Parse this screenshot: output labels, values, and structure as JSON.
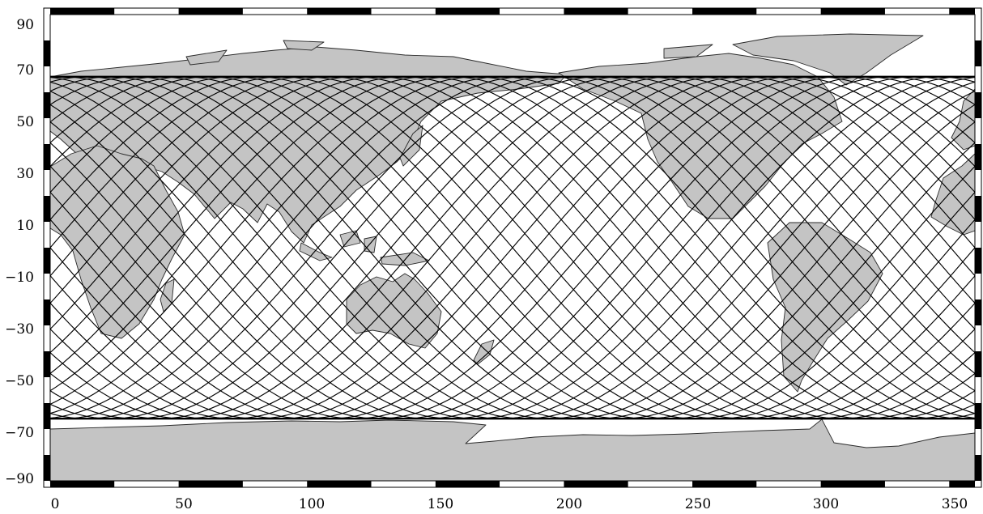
{
  "map": {
    "projection": "equirectangular",
    "frame": "checkered",
    "lon_range": [
      0,
      360
    ],
    "lat_range": [
      -90,
      90
    ],
    "x_ticks": [
      0,
      50,
      100,
      150,
      200,
      250,
      300,
      350
    ],
    "y_ticks": [
      90,
      70,
      50,
      30,
      10,
      -10,
      -30,
      -50,
      -70,
      -90
    ],
    "x_tick_labels": [
      "0",
      "50",
      "100",
      "150",
      "200",
      "250",
      "300",
      "350"
    ],
    "y_tick_labels": [
      "90",
      "70",
      "50",
      "30",
      "10",
      "−10",
      "−30",
      "−50",
      "−70",
      "−90"
    ],
    "frame_segment_deg": 25,
    "land_color": "#c4c4c4",
    "ocean_color": "#ffffff",
    "track_color": "#000000",
    "ground_tracks": {
      "inclination_deg": 66,
      "count": 19,
      "start_lon": 0,
      "spacing_deg": 18.95,
      "half_period_lon_deg": 180,
      "direction": "ascending-and-descending"
    }
  }
}
